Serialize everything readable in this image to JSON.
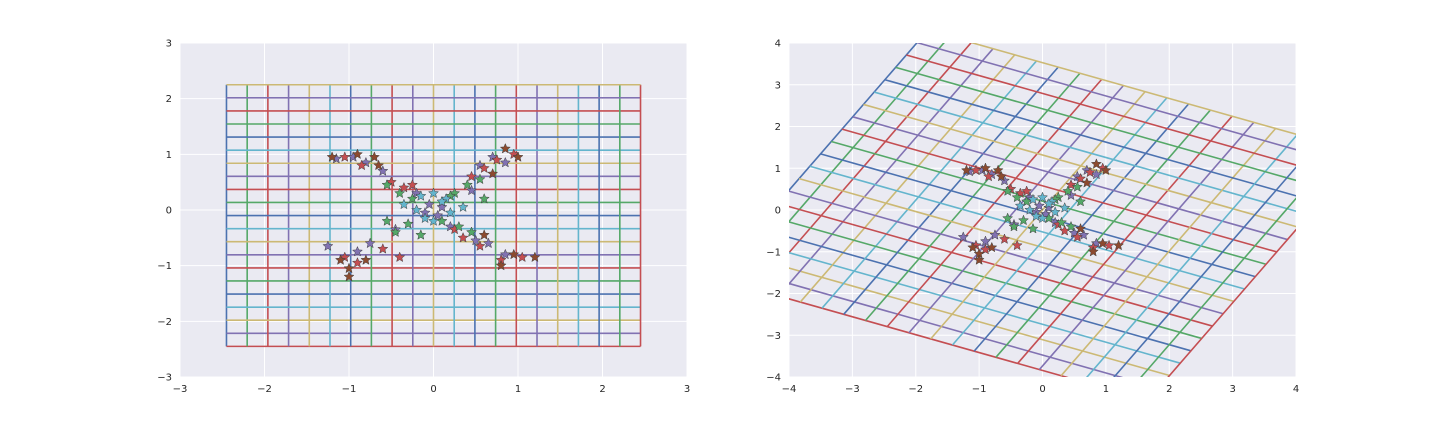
{
  "figure": {
    "background": "#ffffff",
    "axes_face": "#eaeaf2",
    "gridline_color": "#ffffff",
    "palette": [
      "#4c72b0",
      "#55a868",
      "#c44e52",
      "#8172b2",
      "#ccb974",
      "#64b5cd"
    ]
  },
  "chart_data": [
    {
      "type": "scatter",
      "title": "",
      "xlabel": "",
      "ylabel": "",
      "xlim": [
        -3,
        3
      ],
      "ylim": [
        -3,
        3
      ],
      "xticks": [
        -3,
        -2,
        -1,
        0,
        1,
        2,
        3
      ],
      "yticks": [
        -3,
        -2,
        -1,
        0,
        1,
        2,
        3
      ],
      "grid": true,
      "overlay": {
        "type": "grid-lines",
        "x_range": [
          -2.45,
          2.45
        ],
        "y_range": [
          -2.45,
          2.25
        ],
        "count": 20,
        "transform": [
          [
            1,
            0
          ],
          [
            0,
            1
          ]
        ],
        "colors_cycle": [
          "#4c72b0",
          "#55a868",
          "#c44e52",
          "#8172b2",
          "#ccb974",
          "#64b5cd"
        ]
      },
      "marker": "star",
      "series": [
        {
          "color": "#8172b2",
          "points": [
            [
              -1.15,
              0.92
            ],
            [
              -0.95,
              0.95
            ],
            [
              -0.8,
              0.85
            ],
            [
              -0.6,
              0.7
            ],
            [
              0.7,
              0.95
            ],
            [
              0.85,
              0.85
            ],
            [
              0.55,
              0.8
            ],
            [
              -0.05,
              0.1
            ],
            [
              0.1,
              0.05
            ],
            [
              -0.1,
              -0.05
            ],
            [
              0.05,
              -0.1
            ],
            [
              -1.25,
              -0.65
            ],
            [
              -0.9,
              -0.75
            ],
            [
              -0.75,
              -0.6
            ],
            [
              0.65,
              -0.6
            ],
            [
              0.85,
              -0.8
            ],
            [
              0.5,
              -0.55
            ],
            [
              0.2,
              -0.3
            ],
            [
              -0.2,
              0.3
            ],
            [
              0.45,
              0.35
            ],
            [
              -0.45,
              -0.35
            ]
          ]
        },
        {
          "color": "#c44e52",
          "points": [
            [
              -1.05,
              0.95
            ],
            [
              -0.85,
              0.8
            ],
            [
              -0.5,
              0.5
            ],
            [
              -0.35,
              0.4
            ],
            [
              0.75,
              0.9
            ],
            [
              0.95,
              1.0
            ],
            [
              0.6,
              0.75
            ],
            [
              0.45,
              0.6
            ],
            [
              -1.05,
              -0.85
            ],
            [
              -0.9,
              -0.95
            ],
            [
              -0.6,
              -0.7
            ],
            [
              -0.4,
              -0.85
            ],
            [
              0.8,
              -0.9
            ],
            [
              1.05,
              -0.85
            ],
            [
              0.55,
              -0.65
            ],
            [
              0.35,
              -0.5
            ],
            [
              -0.25,
              0.45
            ],
            [
              0.25,
              -0.35
            ]
          ]
        },
        {
          "color": "#55a868",
          "points": [
            [
              -0.55,
              0.45
            ],
            [
              -0.4,
              0.3
            ],
            [
              -0.25,
              0.2
            ],
            [
              0.25,
              0.3
            ],
            [
              0.4,
              0.45
            ],
            [
              0.55,
              0.55
            ],
            [
              -0.3,
              -0.25
            ],
            [
              -0.45,
              -0.4
            ],
            [
              0.3,
              -0.3
            ],
            [
              0.45,
              -0.4
            ],
            [
              0.2,
              0.25
            ],
            [
              -0.15,
              -0.45
            ],
            [
              0.1,
              -0.2
            ],
            [
              -0.55,
              -0.2
            ],
            [
              0.6,
              0.2
            ]
          ]
        },
        {
          "color": "#64b5cd",
          "points": [
            [
              -0.15,
              0.25
            ],
            [
              0.0,
              0.3
            ],
            [
              0.15,
              0.2
            ],
            [
              -0.2,
              0.0
            ],
            [
              0.2,
              -0.05
            ],
            [
              0.0,
              -0.2
            ],
            [
              -0.1,
              -0.15
            ],
            [
              0.1,
              0.15
            ],
            [
              0.35,
              0.05
            ],
            [
              -0.35,
              0.1
            ]
          ]
        },
        {
          "color": "#8c4a2f",
          "points": [
            [
              -1.2,
              0.95
            ],
            [
              -0.9,
              1.0
            ],
            [
              -0.7,
              0.95
            ],
            [
              0.85,
              1.1
            ],
            [
              1.0,
              0.95
            ],
            [
              0.7,
              0.65
            ],
            [
              -1.1,
              -0.9
            ],
            [
              -1.0,
              -1.05
            ],
            [
              -0.8,
              -0.9
            ],
            [
              0.95,
              -0.8
            ],
            [
              0.8,
              -1.0
            ],
            [
              1.2,
              -0.85
            ],
            [
              -0.65,
              0.8
            ],
            [
              0.6,
              -0.45
            ],
            [
              -1.0,
              -1.2
            ]
          ]
        }
      ]
    },
    {
      "type": "scatter",
      "title": "",
      "xlabel": "",
      "ylabel": "",
      "xlim": [
        -4,
        4
      ],
      "ylim": [
        -4,
        4
      ],
      "xticks": [
        -4,
        -3,
        -2,
        -1,
        0,
        1,
        2,
        3,
        4
      ],
      "yticks": [
        -4,
        -3,
        -2,
        -1,
        0,
        1,
        2,
        3,
        4
      ],
      "grid": true,
      "overlay": {
        "type": "grid-lines",
        "x_range": [
          -2.45,
          2.45
        ],
        "y_range": [
          -2.45,
          2.25
        ],
        "count": 20,
        "transform": [
          [
            1.4,
            0.72
          ],
          [
            -0.6,
            1.26
          ]
        ],
        "colors_cycle": [
          "#4c72b0",
          "#55a868",
          "#c44e52",
          "#8172b2",
          "#ccb974",
          "#64b5cd"
        ]
      },
      "marker": "star",
      "series": [
        {
          "color": "#8172b2",
          "points": [
            [
              -1.15,
              0.92
            ],
            [
              -0.95,
              0.95
            ],
            [
              -0.8,
              0.85
            ],
            [
              -0.6,
              0.7
            ],
            [
              0.7,
              0.95
            ],
            [
              0.85,
              0.85
            ],
            [
              0.55,
              0.8
            ],
            [
              -0.05,
              0.1
            ],
            [
              0.1,
              0.05
            ],
            [
              -0.1,
              -0.05
            ],
            [
              0.05,
              -0.1
            ],
            [
              -1.25,
              -0.65
            ],
            [
              -0.9,
              -0.75
            ],
            [
              -0.75,
              -0.6
            ],
            [
              0.65,
              -0.6
            ],
            [
              0.85,
              -0.8
            ],
            [
              0.5,
              -0.55
            ],
            [
              0.2,
              -0.3
            ],
            [
              -0.2,
              0.3
            ],
            [
              0.45,
              0.35
            ],
            [
              -0.45,
              -0.35
            ]
          ]
        },
        {
          "color": "#c44e52",
          "points": [
            [
              -1.05,
              0.95
            ],
            [
              -0.85,
              0.8
            ],
            [
              -0.5,
              0.5
            ],
            [
              -0.35,
              0.4
            ],
            [
              0.75,
              0.9
            ],
            [
              0.95,
              1.0
            ],
            [
              0.6,
              0.75
            ],
            [
              0.45,
              0.6
            ],
            [
              -1.05,
              -0.85
            ],
            [
              -0.9,
              -0.95
            ],
            [
              -0.6,
              -0.7
            ],
            [
              -0.4,
              -0.85
            ],
            [
              0.8,
              -0.9
            ],
            [
              1.05,
              -0.85
            ],
            [
              0.55,
              -0.65
            ],
            [
              0.35,
              -0.5
            ],
            [
              -0.25,
              0.45
            ],
            [
              0.25,
              -0.35
            ]
          ]
        },
        {
          "color": "#55a868",
          "points": [
            [
              -0.55,
              0.45
            ],
            [
              -0.4,
              0.3
            ],
            [
              -0.25,
              0.2
            ],
            [
              0.25,
              0.3
            ],
            [
              0.4,
              0.45
            ],
            [
              0.55,
              0.55
            ],
            [
              -0.3,
              -0.25
            ],
            [
              -0.45,
              -0.4
            ],
            [
              0.3,
              -0.3
            ],
            [
              0.45,
              -0.4
            ],
            [
              0.2,
              0.25
            ],
            [
              -0.15,
              -0.45
            ],
            [
              0.1,
              -0.2
            ],
            [
              -0.55,
              -0.2
            ],
            [
              0.6,
              0.2
            ]
          ]
        },
        {
          "color": "#64b5cd",
          "points": [
            [
              -0.15,
              0.25
            ],
            [
              0.0,
              0.3
            ],
            [
              0.15,
              0.2
            ],
            [
              -0.2,
              0.0
            ],
            [
              0.2,
              -0.05
            ],
            [
              0.0,
              -0.2
            ],
            [
              -0.1,
              -0.15
            ],
            [
              0.1,
              0.15
            ],
            [
              0.35,
              0.05
            ],
            [
              -0.35,
              0.1
            ]
          ]
        },
        {
          "color": "#8c4a2f",
          "points": [
            [
              -1.2,
              0.95
            ],
            [
              -0.9,
              1.0
            ],
            [
              -0.7,
              0.95
            ],
            [
              0.85,
              1.1
            ],
            [
              1.0,
              0.95
            ],
            [
              0.7,
              0.65
            ],
            [
              -1.1,
              -0.9
            ],
            [
              -1.0,
              -1.05
            ],
            [
              -0.8,
              -0.9
            ],
            [
              0.95,
              -0.8
            ],
            [
              0.8,
              -1.0
            ],
            [
              1.2,
              -0.85
            ],
            [
              -0.65,
              0.8
            ],
            [
              0.6,
              -0.45
            ],
            [
              -1.0,
              -1.2
            ]
          ]
        }
      ]
    }
  ]
}
